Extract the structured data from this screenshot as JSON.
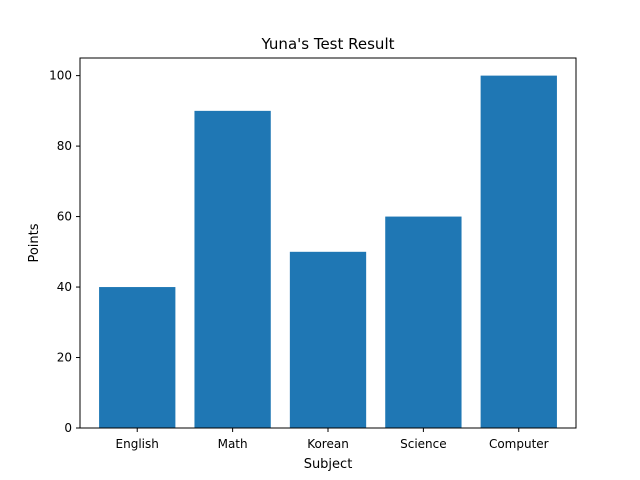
{
  "chart_data": {
    "type": "bar",
    "title": "Yuna's Test Result",
    "xlabel": "Subject",
    "ylabel": "Points",
    "categories": [
      "English",
      "Math",
      "Korean",
      "Science",
      "Computer"
    ],
    "values": [
      40,
      90,
      50,
      60,
      100
    ],
    "ylim": [
      0,
      105
    ],
    "yticks": [
      0,
      20,
      40,
      60,
      80,
      100
    ],
    "grid": false,
    "bar_color": "#1f77b4"
  }
}
